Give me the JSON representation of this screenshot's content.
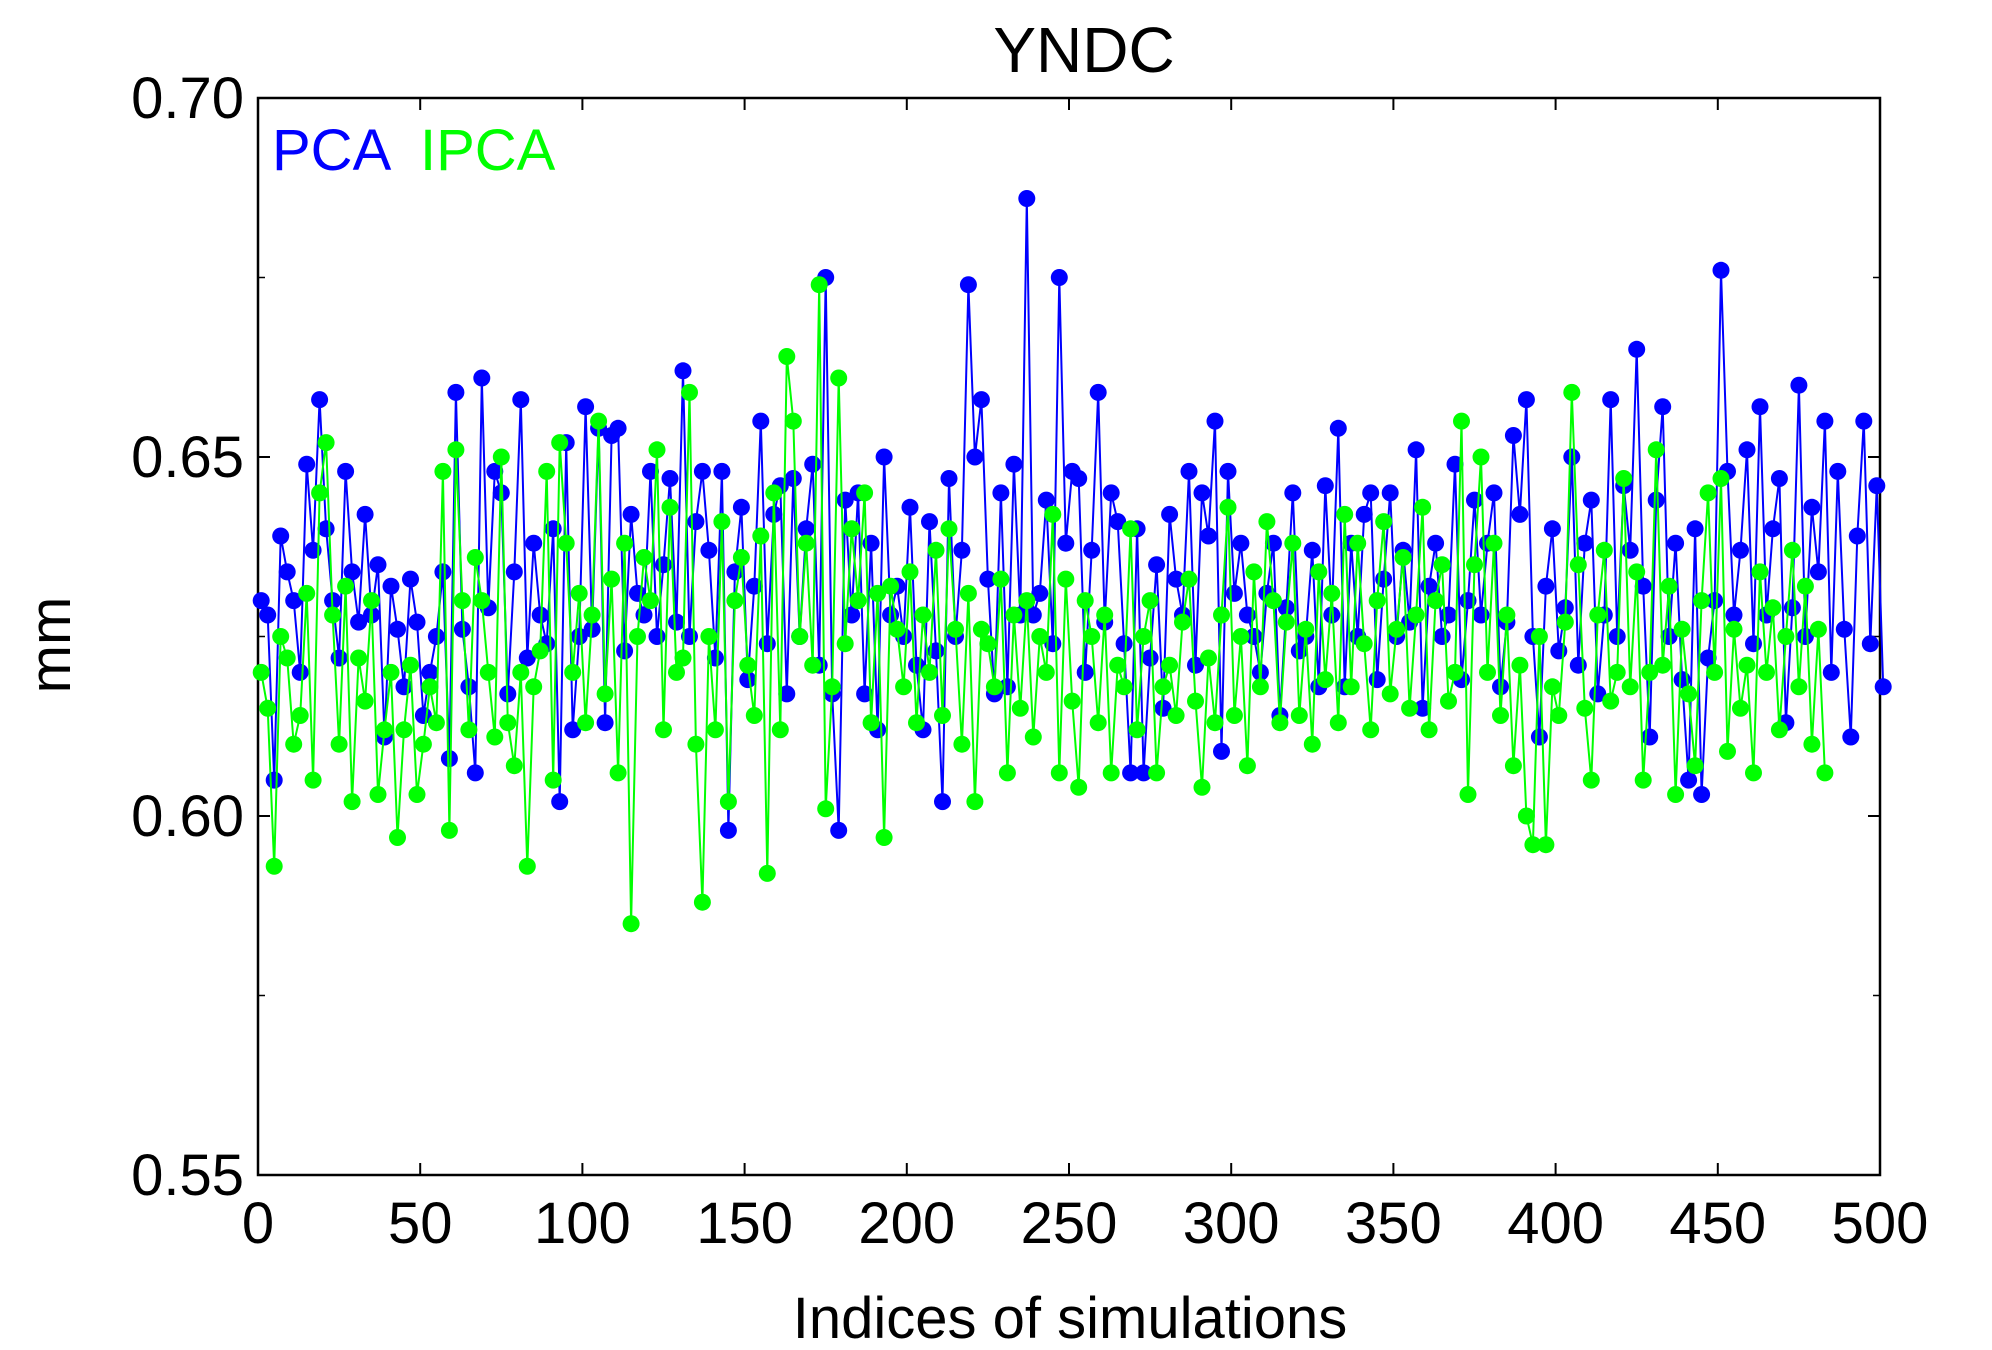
{
  "chart_data": {
    "type": "line",
    "title": "YNDC",
    "xlabel": "Indices of simulations",
    "ylabel": "mm",
    "xlim": [
      0,
      500
    ],
    "ylim": [
      0.55,
      0.7
    ],
    "xticks": [
      "0",
      "50",
      "100",
      "150",
      "200",
      "250",
      "300",
      "350",
      "400",
      "450",
      "500"
    ],
    "yticks": [
      "0.55",
      "0.60",
      "0.65",
      "0.70"
    ],
    "grid": false,
    "legend_position": "top-left",
    "markers": true,
    "series": [
      {
        "name": "PCA",
        "color": "#0000ff",
        "y": [
          0.63,
          0.628,
          0.605,
          0.639,
          0.634,
          0.63,
          0.62,
          0.649,
          0.637,
          0.658,
          0.64,
          0.63,
          0.622,
          0.648,
          0.634,
          0.627,
          0.642,
          0.628,
          0.635,
          0.611,
          0.632,
          0.626,
          0.618,
          0.633,
          0.627,
          0.614,
          0.62,
          0.625,
          0.634,
          0.608,
          0.659,
          0.626,
          0.618,
          0.606,
          0.661,
          0.629,
          0.648,
          0.645,
          0.617,
          0.634,
          0.658,
          0.622,
          0.638,
          0.628,
          0.624,
          0.64,
          0.602,
          0.652,
          0.612,
          0.625,
          0.657,
          0.626,
          0.654,
          0.613,
          0.653,
          0.654,
          0.623,
          0.642,
          0.631,
          0.628,
          0.648,
          0.625,
          0.635,
          0.647,
          0.627,
          0.662,
          0.625,
          0.641,
          0.648,
          0.637,
          0.622,
          0.648,
          0.598,
          0.634,
          0.643,
          0.619,
          0.632,
          0.655,
          0.624,
          0.642,
          0.646,
          0.617,
          0.647,
          0.625,
          0.64,
          0.649,
          0.621,
          0.675,
          0.617,
          0.598,
          0.644,
          0.628,
          0.645,
          0.617,
          0.638,
          0.612,
          0.65,
          0.628,
          0.632,
          0.625,
          0.643,
          0.621,
          0.612,
          0.641,
          0.623,
          0.602,
          0.647,
          0.625,
          0.637,
          0.674,
          0.65,
          0.658,
          0.633,
          0.617,
          0.645,
          0.618,
          0.649,
          0.628,
          0.686,
          0.628,
          0.631,
          0.644,
          0.624,
          0.675,
          0.638,
          0.648,
          0.647,
          0.62,
          0.637,
          0.659,
          0.627,
          0.645,
          0.641,
          0.624,
          0.606,
          0.64,
          0.606,
          0.622,
          0.635,
          0.615,
          0.642,
          0.633,
          0.628,
          0.648,
          0.621,
          0.645,
          0.639,
          0.655,
          0.609,
          0.648,
          0.631,
          0.638,
          0.628,
          0.625,
          0.62,
          0.631,
          0.638,
          0.614,
          0.629,
          0.645,
          0.623,
          0.625,
          0.637,
          0.618,
          0.646,
          0.628,
          0.654,
          0.618,
          0.638,
          0.625,
          0.642,
          0.645,
          0.619,
          0.633,
          0.645,
          0.625,
          0.637,
          0.627,
          0.651,
          0.615,
          0.632,
          0.638,
          0.625,
          0.628,
          0.649,
          0.619,
          0.63,
          0.644,
          0.628,
          0.638,
          0.645,
          0.618,
          0.627,
          0.653,
          0.642,
          0.658,
          0.625,
          0.611,
          0.632,
          0.64,
          0.623,
          0.629,
          0.65,
          0.621,
          0.638,
          0.644,
          0.617,
          0.628,
          0.658,
          0.625,
          0.646,
          0.637,
          0.665,
          0.632,
          0.611,
          0.644,
          0.657,
          0.625,
          0.638,
          0.619,
          0.605,
          0.64,
          0.603,
          0.622,
          0.63,
          0.676,
          0.648,
          0.628,
          0.637,
          0.651,
          0.624,
          0.657,
          0.628,
          0.64,
          0.647,
          0.613,
          0.629,
          0.66,
          0.625,
          0.643,
          0.634,
          0.655,
          0.62,
          0.648,
          0.626,
          0.611,
          0.639,
          0.655,
          0.624,
          0.646,
          0.618
        ]
      },
      {
        "name": "IPCA",
        "color": "#00ff00",
        "y": [
          0.62,
          0.615,
          0.593,
          0.625,
          0.622,
          0.61,
          0.614,
          0.631,
          0.605,
          0.645,
          0.652,
          0.628,
          0.61,
          0.632,
          0.602,
          0.622,
          0.616,
          0.63,
          0.603,
          0.612,
          0.62,
          0.597,
          0.612,
          0.621,
          0.603,
          0.61,
          0.618,
          0.613,
          0.648,
          0.598,
          0.651,
          0.63,
          0.612,
          0.636,
          0.63,
          0.62,
          0.611,
          0.65,
          0.613,
          0.607,
          0.62,
          0.593,
          0.618,
          0.623,
          0.648,
          0.605,
          0.652,
          0.638,
          0.62,
          0.631,
          0.613,
          0.628,
          0.655,
          0.617,
          0.633,
          0.606,
          0.638,
          0.585,
          0.625,
          0.636,
          0.63,
          0.651,
          0.612,
          0.643,
          0.62,
          0.622,
          0.659,
          0.61,
          0.588,
          0.625,
          0.612,
          0.641,
          0.602,
          0.63,
          0.636,
          0.621,
          0.614,
          0.639,
          0.592,
          0.645,
          0.612,
          0.664,
          0.655,
          0.625,
          0.638,
          0.621,
          0.674,
          0.601,
          0.618,
          0.661,
          0.624,
          0.64,
          0.63,
          0.645,
          0.613,
          0.631,
          0.597,
          0.632,
          0.626,
          0.618,
          0.634,
          0.613,
          0.628,
          0.62,
          0.637,
          0.614,
          0.64,
          0.626,
          0.61,
          0.631,
          0.602,
          0.626,
          0.624,
          0.618,
          0.633,
          0.606,
          0.628,
          0.615,
          0.63,
          0.611,
          0.625,
          0.62,
          0.642,
          0.606,
          0.633,
          0.616,
          0.604,
          0.63,
          0.625,
          0.613,
          0.628,
          0.606,
          0.621,
          0.618,
          0.64,
          0.612,
          0.625,
          0.63,
          0.606,
          0.618,
          0.621,
          0.614,
          0.627,
          0.633,
          0.616,
          0.604,
          0.622,
          0.613,
          0.628,
          0.643,
          0.614,
          0.625,
          0.607,
          0.634,
          0.618,
          0.641,
          0.63,
          0.613,
          0.627,
          0.638,
          0.614,
          0.626,
          0.61,
          0.634,
          0.619,
          0.631,
          0.613,
          0.642,
          0.618,
          0.638,
          0.624,
          0.612,
          0.63,
          0.641,
          0.617,
          0.626,
          0.636,
          0.615,
          0.628,
          0.643,
          0.612,
          0.63,
          0.635,
          0.616,
          0.62,
          0.655,
          0.603,
          0.635,
          0.65,
          0.62,
          0.638,
          0.614,
          0.628,
          0.607,
          0.621,
          0.6,
          0.596,
          0.625,
          0.596,
          0.618,
          0.614,
          0.627,
          0.659,
          0.635,
          0.615,
          0.605,
          0.628,
          0.637,
          0.616,
          0.62,
          0.647,
          0.618,
          0.634,
          0.605,
          0.62,
          0.651,
          0.621,
          0.632,
          0.603,
          0.626,
          0.617,
          0.607,
          0.63,
          0.645,
          0.62,
          0.647,
          0.609,
          0.626,
          0.615,
          0.621,
          0.606,
          0.634,
          0.62,
          0.629,
          0.612,
          0.625,
          0.637,
          0.618,
          0.632,
          0.61,
          0.626,
          0.606
        ]
      }
    ]
  }
}
